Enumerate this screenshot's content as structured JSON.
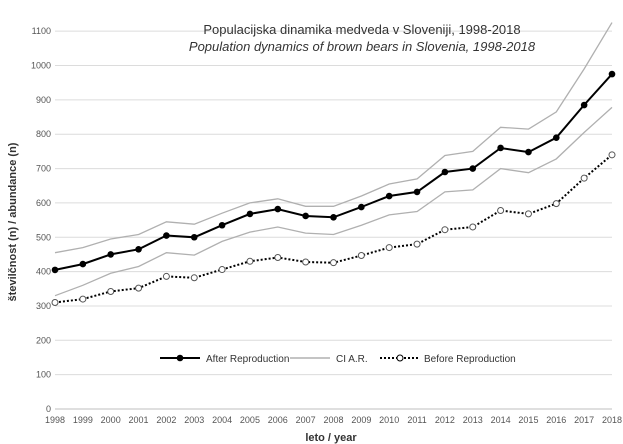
{
  "chart_data": {
    "type": "line",
    "title": "Populacijska dinamika medveda v Sloveniji, 1998-2018",
    "subtitle": "Population dynamics of brown bears in Slovenia, 1998-2018",
    "xlabel": "leto / year",
    "ylabel": "številčnost (n) / abundance (n)",
    "ylim": [
      0,
      1150
    ],
    "yticks": [
      0,
      100,
      200,
      300,
      400,
      500,
      600,
      700,
      800,
      900,
      1000,
      1100
    ],
    "grid": true,
    "legend": "bottom-center",
    "x": [
      "1998",
      "1999",
      "2000",
      "2001",
      "2002",
      "2003",
      "2004",
      "2005",
      "2006",
      "2007",
      "2008",
      "2009",
      "2010",
      "2011",
      "2012",
      "2013",
      "2014",
      "2015",
      "2016",
      "2017",
      "2018"
    ],
    "series": [
      {
        "name": "After Reproduction",
        "color": "#000000",
        "values": [
          405,
          422,
          450,
          465,
          505,
          500,
          535,
          568,
          582,
          562,
          558,
          588,
          620,
          632,
          690,
          700,
          760,
          748,
          790,
          885,
          975
        ]
      },
      {
        "name": "CI A.R.",
        "color": "#b0b0b0",
        "values_upper": [
          455,
          470,
          495,
          508,
          545,
          538,
          570,
          600,
          612,
          590,
          590,
          620,
          655,
          670,
          738,
          750,
          820,
          815,
          865,
          990,
          1125
        ],
        "values_lower": [
          330,
          360,
          395,
          415,
          455,
          448,
          488,
          515,
          530,
          512,
          508,
          535,
          565,
          575,
          632,
          638,
          700,
          688,
          728,
          805,
          878
        ]
      },
      {
        "name": "Before Reproduction",
        "color": "#000000",
        "values": [
          310,
          320,
          342,
          352,
          386,
          382,
          406,
          430,
          441,
          428,
          426,
          447,
          470,
          480,
          522,
          530,
          578,
          568,
          598,
          672,
          740
        ]
      }
    ]
  }
}
